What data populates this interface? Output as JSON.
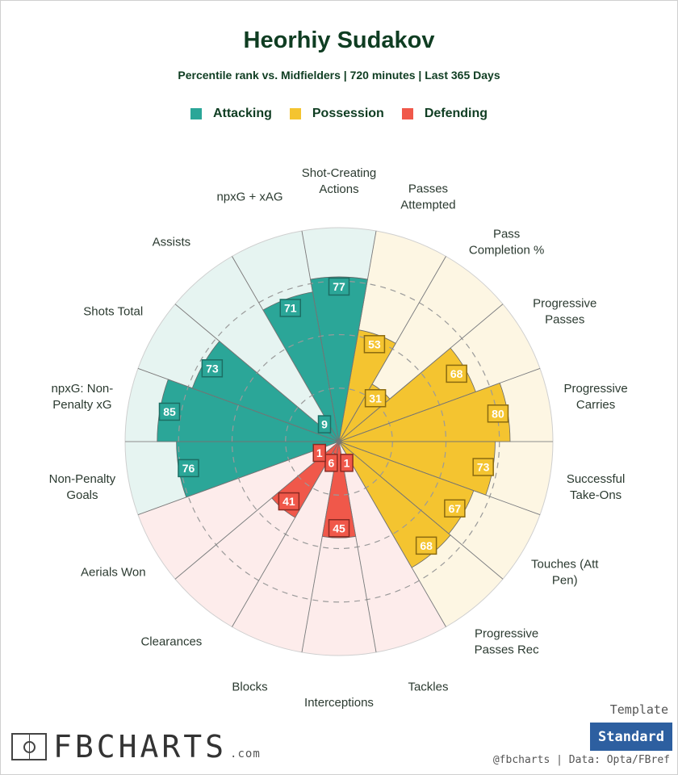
{
  "header": {
    "title": "Heorhiy Sudakov",
    "subtitle": "Percentile rank vs. Midfielders | 720 minutes | Last 365 Days"
  },
  "legend": [
    {
      "name": "Attacking",
      "color": "#2ba698"
    },
    {
      "name": "Possession",
      "color": "#f4c430"
    },
    {
      "name": "Defending",
      "color": "#f0584a"
    }
  ],
  "chart_data": {
    "type": "polar-bar",
    "rlim": [
      0,
      100
    ],
    "gridlines": [
      25,
      50,
      75
    ],
    "categories": [
      {
        "label": [
          "Shot-Creating",
          "Actions"
        ],
        "value": 77,
        "group": "Attacking"
      },
      {
        "label": [
          "Passes",
          "Attempted"
        ],
        "value": 53,
        "group": "Possession"
      },
      {
        "label": [
          "Pass",
          "Completion %"
        ],
        "value": 31,
        "group": "Possession"
      },
      {
        "label": [
          "Progressive",
          "Passes"
        ],
        "value": 68,
        "group": "Possession"
      },
      {
        "label": [
          "Progressive",
          "Carries"
        ],
        "value": 80,
        "group": "Possession"
      },
      {
        "label": [
          "Successful",
          "Take-Ons"
        ],
        "value": 73,
        "group": "Possession"
      },
      {
        "label": [
          "Touches (Att",
          "Pen)"
        ],
        "value": 67,
        "group": "Possession"
      },
      {
        "label": [
          "Progressive",
          "Passes Rec"
        ],
        "value": 68,
        "group": "Possession"
      },
      {
        "label": [
          "Tackles"
        ],
        "value": 1,
        "group": "Defending"
      },
      {
        "label": [
          "Interceptions"
        ],
        "value": 45,
        "group": "Defending"
      },
      {
        "label": [
          "Blocks"
        ],
        "value": 6,
        "group": "Defending"
      },
      {
        "label": [
          "Clearances"
        ],
        "value": 41,
        "group": "Defending"
      },
      {
        "label": [
          "Aerials Won"
        ],
        "value": 1,
        "group": "Defending"
      },
      {
        "label": [
          "Non-Penalty",
          "Goals"
        ],
        "value": 76,
        "group": "Attacking"
      },
      {
        "label": [
          "npxG: Non-",
          "Penalty xG"
        ],
        "value": 85,
        "group": "Attacking"
      },
      {
        "label": [
          "Shots Total"
        ],
        "value": 73,
        "group": "Attacking"
      },
      {
        "label": [
          "Assists"
        ],
        "value": 9,
        "group": "Attacking"
      },
      {
        "label": [
          "npxG + xAG"
        ],
        "value": 71,
        "group": "Attacking"
      }
    ],
    "colors": {
      "Attacking": {
        "bar": "#2ba698",
        "bg": "#e6f4f1",
        "label_border": "#1c6e64"
      },
      "Possession": {
        "bar": "#f4c430",
        "bg": "#fdf6e3",
        "label_border": "#8a6a10"
      },
      "Defending": {
        "bar": "#f0584a",
        "bg": "#fdeceb",
        "label_border": "#8a2a22"
      }
    }
  },
  "footer": {
    "template_label": "Template",
    "template_button": "Standard",
    "credit": "@fbcharts | Data: Opta/FBref",
    "logo_text": "FBCHARTS",
    "logo_suffix": ".com"
  }
}
